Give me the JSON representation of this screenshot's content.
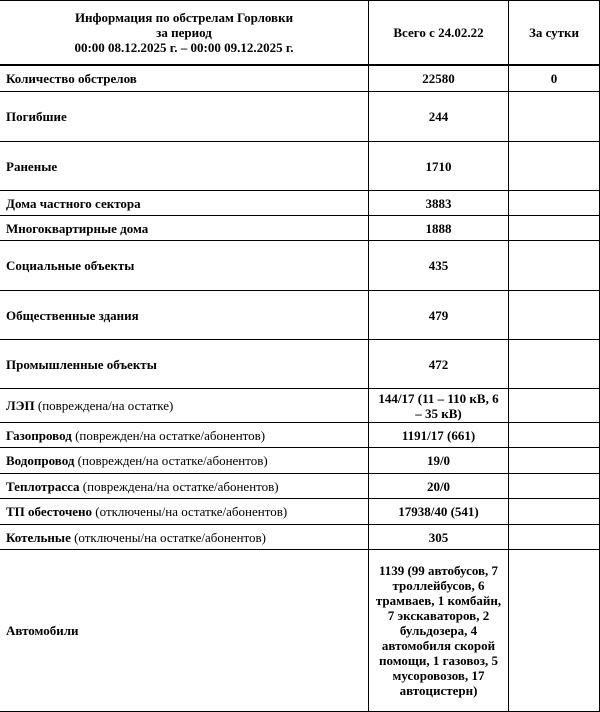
{
  "header": {
    "title_lines": [
      "Информация по обстрелам Горловки",
      "за период",
      "00:00 08.12.2025 г. – 00:00 09.12.2025 г."
    ],
    "col_total": "Всего с 24.02.22",
    "col_day": "За сутки"
  },
  "rows": [
    {
      "label": "Количество обстрелов",
      "note": "",
      "total": "22580",
      "day": "0"
    },
    {
      "label": "Погибшие",
      "note": "",
      "total": "244",
      "day": ""
    },
    {
      "label": "Раненые",
      "note": "",
      "total": "1710",
      "day": ""
    },
    {
      "label": "Дома частного сектора",
      "note": "",
      "total": "3883",
      "day": ""
    },
    {
      "label": "Многоквартирные дома",
      "note": "",
      "total": "1888",
      "day": ""
    },
    {
      "label": "Социальные объекты",
      "note": "",
      "total": "435",
      "day": ""
    },
    {
      "label": "Общественные здания",
      "note": "",
      "total": "479",
      "day": ""
    },
    {
      "label": "Промышленные объекты",
      "note": "",
      "total": "472",
      "day": ""
    },
    {
      "label": "ЛЭП",
      "note": " (повреждена/на остатке)",
      "total": "144/17 (11 – 110 кВ, 6 – 35 кВ)",
      "day": ""
    },
    {
      "label": "Газопровод",
      "note": " (поврежден/на остатке/абонентов)",
      "total": "1191/17 (661)",
      "day": ""
    },
    {
      "label": "Водопровод",
      "note": " (поврежден/на остатке/абонентов)",
      "total": "19/0",
      "day": ""
    },
    {
      "label": "Теплотрасса",
      "note": " (повреждена/на остатке/абонентов)",
      "total": "20/0",
      "day": ""
    },
    {
      "label": "ТП обесточено",
      "note": " (отключены/на остатке/абонентов)",
      "total": "17938/40 (541)",
      "day": ""
    },
    {
      "label": "Котельные",
      "note": " (отключены/на остатке/абонентов)",
      "total": "305",
      "day": ""
    },
    {
      "label": "Автомобили",
      "note": "",
      "total": "1139 (99 автобусов, 7 троллейбусов, 6 трамваев, 1 комбайн, 7 экскаваторов, 2 бульдозера, 4 автомобиля скорой помощи, 1 газовоз, 5 мусоровозов, 17 автоцистерн)",
      "day": ""
    }
  ]
}
